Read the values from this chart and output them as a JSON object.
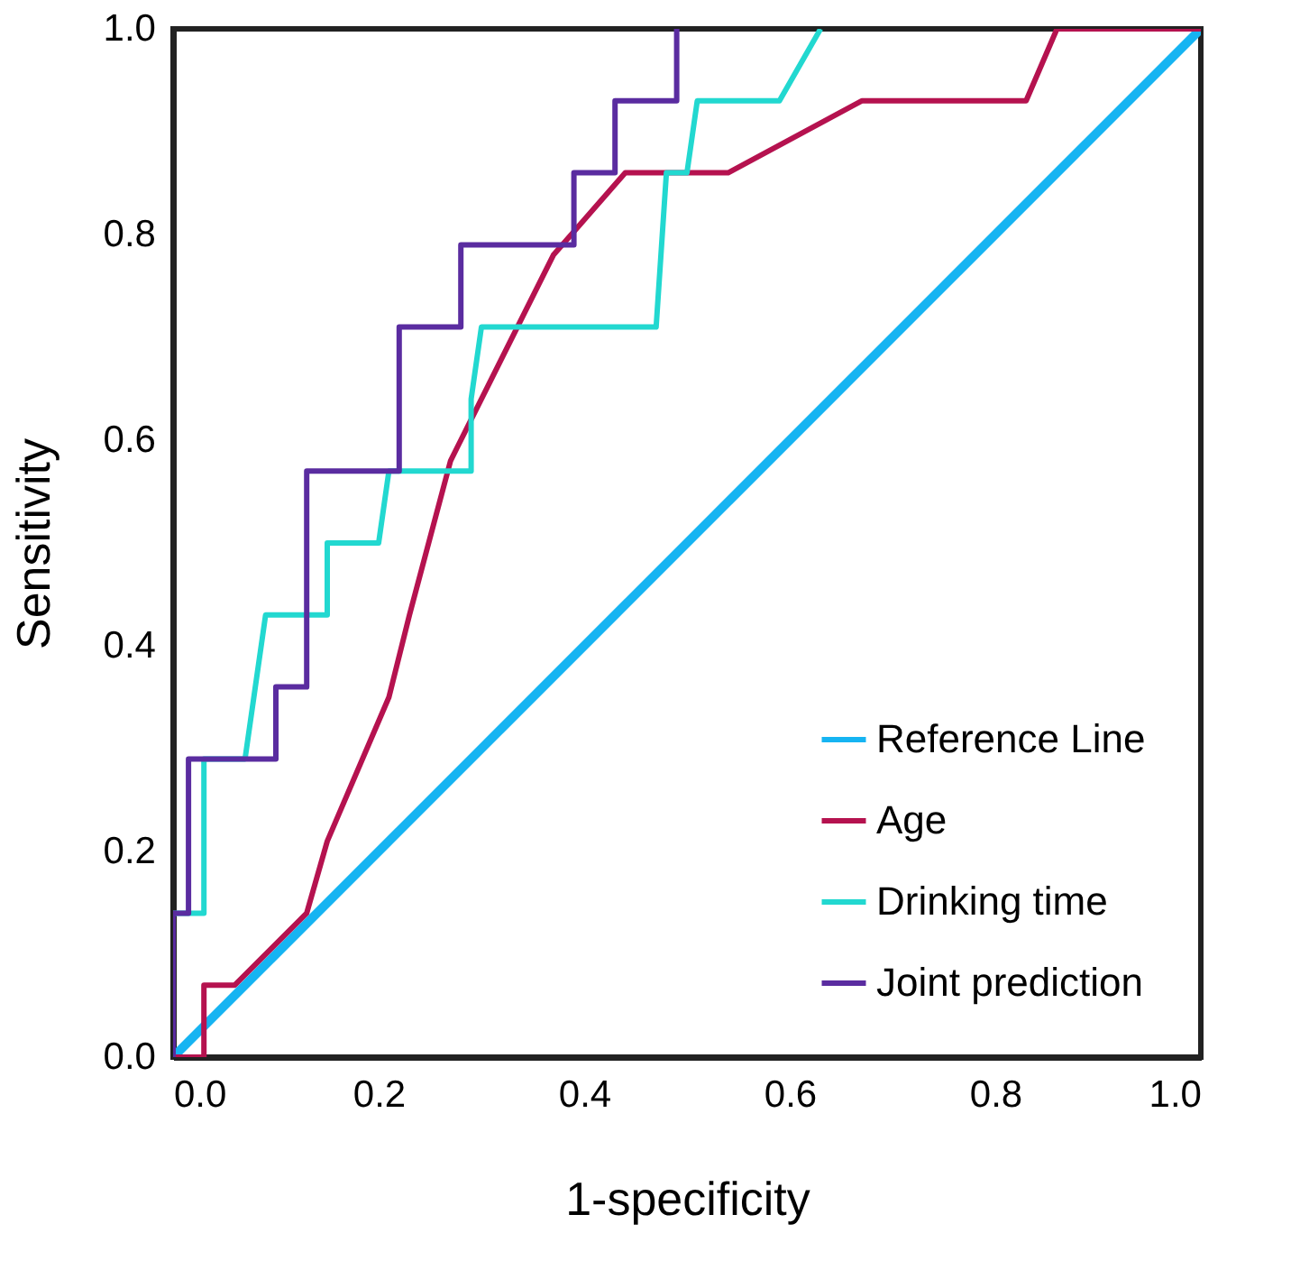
{
  "chart_data": {
    "type": "line",
    "xlabel": "1-specificity",
    "ylabel": "Sensitivity",
    "xlim": [
      0,
      1
    ],
    "ylim": [
      0,
      1
    ],
    "xticks": [
      {
        "value": 0,
        "label": "0.0"
      },
      {
        "value": 0.2,
        "label": "0.2"
      },
      {
        "value": 0.4,
        "label": "0.4"
      },
      {
        "value": 0.6,
        "label": "0.6"
      },
      {
        "value": 0.8,
        "label": "0.8"
      },
      {
        "value": 1,
        "label": "1.0"
      }
    ],
    "yticks": [
      {
        "value": 0,
        "label": "0.0"
      },
      {
        "value": 0.2,
        "label": "0.2"
      },
      {
        "value": 0.4,
        "label": "0.4"
      },
      {
        "value": 0.6,
        "label": "0.6"
      },
      {
        "value": 0.8,
        "label": "0.8"
      },
      {
        "value": 1,
        "label": "1.0"
      }
    ],
    "grid": false,
    "legend": "bottom right",
    "marker": "none",
    "line_style": "solid",
    "series": [
      {
        "name": "Reference Line",
        "color": "#16b4f2",
        "x": [
          0,
          1
        ],
        "values": [
          0,
          1
        ]
      },
      {
        "name": "Age",
        "color": "#b5124f",
        "x": [
          0,
          0.03,
          0.03,
          0.06,
          0.13,
          0.15,
          0.21,
          0.23,
          0.27,
          0.31,
          0.37,
          0.44,
          0.54,
          0.67,
          0.83,
          0.86,
          1
        ],
        "values": [
          0,
          0,
          0.07,
          0.07,
          0.14,
          0.21,
          0.35,
          0.43,
          0.58,
          0.66,
          0.78,
          0.86,
          0.86,
          0.93,
          0.93,
          1,
          1
        ]
      },
      {
        "name": "Drinking time",
        "color": "#22d8d0",
        "x": [
          0,
          0,
          0.03,
          0.03,
          0.07,
          0.09,
          0.15,
          0.15,
          0.2,
          0.21,
          0.29,
          0.29,
          0.3,
          0.47,
          0.48,
          0.5,
          0.51,
          0.59,
          0.63
        ],
        "values": [
          0,
          0.14,
          0.14,
          0.29,
          0.29,
          0.43,
          0.43,
          0.5,
          0.5,
          0.57,
          0.57,
          0.64,
          0.71,
          0.71,
          0.86,
          0.86,
          0.93,
          0.93,
          1
        ]
      },
      {
        "name": "Joint prediction",
        "color": "#5a2ca0",
        "x": [
          0,
          0,
          0.015,
          0.015,
          0.1,
          0.1,
          0.13,
          0.13,
          0.22,
          0.22,
          0.28,
          0.28,
          0.39,
          0.39,
          0.43,
          0.43,
          0.49,
          0.49
        ],
        "values": [
          0,
          0.14,
          0.14,
          0.29,
          0.29,
          0.36,
          0.36,
          0.57,
          0.57,
          0.71,
          0.71,
          0.79,
          0.79,
          0.86,
          0.86,
          0.93,
          0.93,
          1
        ]
      }
    ]
  }
}
